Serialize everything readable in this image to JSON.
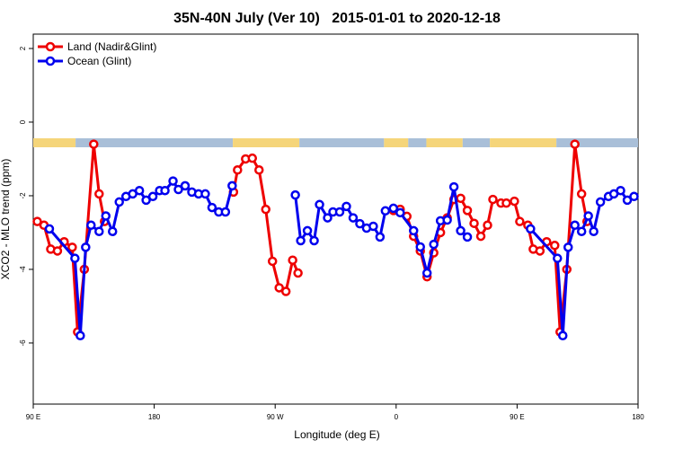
{
  "chart_data": {
    "type": "line",
    "title": "35N-40N July (Ver 10)   2015-01-01 to 2020-12-18",
    "xlabel": "Longitude (deg E)",
    "ylabel": "XCO2 - MLO trend (ppm)",
    "xlim": [
      90,
      540
    ],
    "ylim": [
      -7.66,
      2.39
    ],
    "xticks": [
      {
        "value": 90,
        "label": "90 E"
      },
      {
        "value": 180,
        "label": "180"
      },
      {
        "value": 270,
        "label": "90 W"
      },
      {
        "value": 360,
        "label": "0"
      },
      {
        "value": 450,
        "label": "90 E"
      },
      {
        "value": 540,
        "label": "180"
      }
    ],
    "yticks": [
      2,
      0,
      -2,
      -4,
      -6
    ],
    "legend": "top-left",
    "series": [
      {
        "name": "Land (Nadir&Glint)",
        "color": "#ee0000",
        "x": [
          93,
          98,
          103,
          108,
          113,
          119,
          123,
          128,
          135,
          139,
          143,
          190,
          239,
          242,
          248,
          253,
          258,
          263,
          268,
          273,
          278,
          283,
          287,
          320,
          358,
          363,
          368,
          373,
          378,
          383,
          388,
          393,
          398,
          403,
          408,
          413,
          418,
          423,
          428,
          432,
          438,
          442,
          448,
          452,
          458,
          462,
          467,
          472,
          478,
          482,
          487,
          493,
          498,
          502
        ],
        "values": [
          -2.7,
          -2.8,
          -3.45,
          -3.5,
          -3.25,
          -3.4,
          -5.7,
          -4.0,
          -0.6,
          -1.95,
          -2.7,
          null,
          -1.9,
          -1.3,
          -1.0,
          -0.98,
          -1.3,
          -2.37,
          -3.78,
          -4.5,
          -4.6,
          -3.75,
          -4.1,
          null,
          -2.4,
          -2.37,
          -2.56,
          -3.1,
          -3.5,
          -4.2,
          -3.55,
          -3.0,
          -2.6,
          -2.1,
          -2.07,
          -2.4,
          -2.75,
          -3.1,
          -2.8,
          -2.1,
          -2.2,
          -2.2,
          -2.15,
          -2.7,
          -2.8,
          -3.45,
          -3.5,
          -3.25,
          -3.35,
          -5.7,
          -4.0,
          -0.6,
          -1.95,
          -2.7
        ]
      },
      {
        "name": "Ocean (Glint)",
        "color": "#0000ee",
        "x": [
          102,
          121,
          125,
          129,
          133,
          139,
          144,
          149,
          154,
          159,
          164,
          169,
          174,
          179,
          184,
          188,
          194,
          198,
          203,
          208,
          213,
          218,
          223,
          228,
          233,
          238,
          260,
          285,
          289,
          294,
          299,
          303,
          309,
          313,
          318,
          323,
          328,
          333,
          338,
          343,
          348,
          352,
          358,
          363,
          373,
          378,
          383,
          388,
          393,
          398,
          403,
          408,
          413,
          440,
          460,
          480,
          484,
          488,
          493,
          498,
          503,
          507,
          512,
          518,
          522,
          527,
          532,
          537
        ],
        "values": [
          -2.9,
          -3.7,
          -5.8,
          -3.4,
          -2.8,
          -2.97,
          -2.55,
          -2.97,
          -2.17,
          -2.02,
          -1.95,
          -1.86,
          -2.12,
          -2.02,
          -1.86,
          -1.86,
          -1.6,
          -1.83,
          -1.73,
          -1.9,
          -1.95,
          -1.95,
          -2.32,
          -2.44,
          -2.44,
          -1.73,
          null,
          -1.98,
          -3.22,
          -2.95,
          -3.22,
          -2.24,
          -2.6,
          -2.44,
          -2.44,
          -2.29,
          -2.6,
          -2.76,
          -2.88,
          -2.83,
          -3.12,
          -2.41,
          -2.34,
          -2.46,
          -2.95,
          -3.39,
          -4.1,
          -3.32,
          -2.68,
          -2.66,
          -1.76,
          -2.95,
          -3.12,
          null,
          -2.9,
          -3.7,
          -5.8,
          -3.4,
          -2.8,
          -2.97,
          -2.55,
          -2.97,
          -2.17,
          -2.02,
          -1.95,
          -1.86,
          -2.12,
          -2.02
        ]
      }
    ]
  }
}
